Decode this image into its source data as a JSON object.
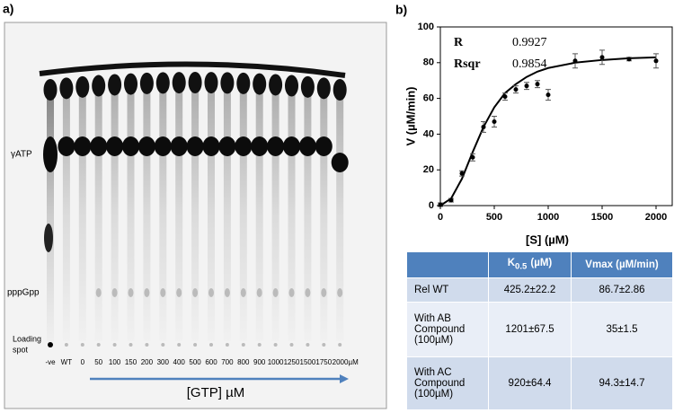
{
  "panel_a": {
    "label": "a)",
    "lane_labels": [
      "-ve",
      "WT",
      "0",
      "50",
      "100",
      "150",
      "200",
      "300",
      "400",
      "500",
      "600",
      "700",
      "800",
      "900",
      "1000",
      "1250",
      "1500",
      "1750",
      "2000µM"
    ],
    "atp_label": "γATP",
    "ppgpp_label": "pppGpp",
    "loading_label": [
      "Loading",
      "spot"
    ],
    "axis_label": "[GTP] µM"
  },
  "chart_data": {
    "type": "scatter",
    "panel_label": "b)",
    "x_label": "[S] (µM)",
    "y_label": "V (µM/min)",
    "x": [
      0,
      100,
      200,
      300,
      400,
      500,
      600,
      700,
      800,
      900,
      1000,
      1250,
      1500,
      1750,
      2000
    ],
    "values": [
      0.5,
      3,
      18,
      27,
      44,
      47,
      61,
      65,
      67,
      68,
      62,
      81,
      83,
      82,
      81
    ],
    "errors": [
      1,
      1,
      1.5,
      2,
      3,
      3,
      2,
      2,
      2,
      2,
      3,
      4,
      4,
      1,
      4
    ],
    "color": "#000000",
    "fit": {
      "x": [
        0,
        100,
        200,
        300,
        400,
        500,
        600,
        700,
        800,
        900,
        1000,
        1250,
        1500,
        1750,
        2000
      ],
      "values": [
        0,
        4,
        15,
        30,
        44,
        55,
        63,
        68,
        72,
        75,
        77,
        80,
        81.5,
        82.5,
        83
      ]
    },
    "stats": [
      {
        "label": "R",
        "value": 0.9927
      },
      {
        "label": "Rsqr",
        "value": 0.9854
      }
    ],
    "xlim": [
      0,
      2150
    ],
    "ylim": [
      0,
      100
    ],
    "xticks": [
      0,
      500,
      1000,
      1500,
      2000
    ],
    "yticks": [
      0,
      20,
      40,
      60,
      80,
      100
    ]
  },
  "table": {
    "header": [
      {
        "symbol": "K",
        "subscript": "0.5",
        "unit": "(µM)"
      },
      "Vmax (µM/min)"
    ],
    "rows": [
      [
        "Rel WT",
        "425.2±22.2",
        "86.7±2.86"
      ],
      [
        "With AB Compound (100µM)",
        "1201±67.5",
        "35±1.5"
      ],
      [
        "With AC Compound (100µM)",
        "920±64.4",
        "94.3±14.7"
      ]
    ]
  }
}
